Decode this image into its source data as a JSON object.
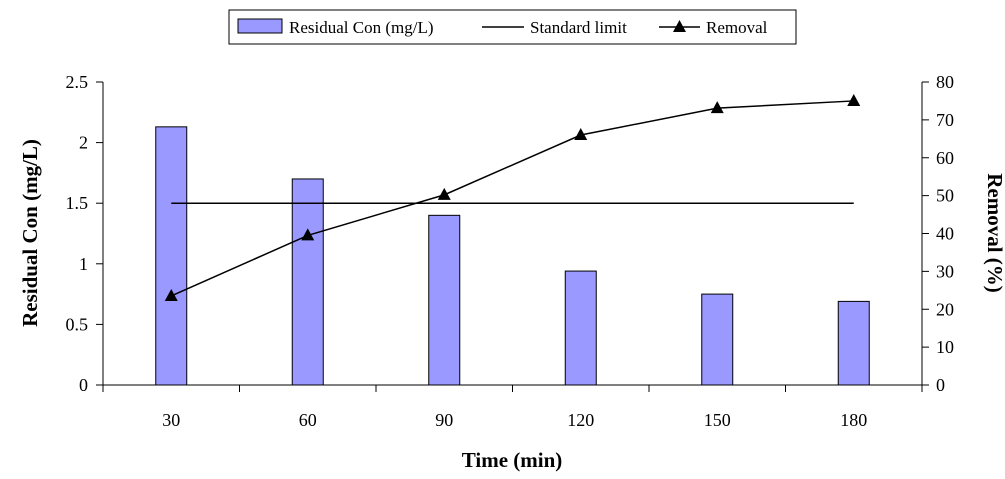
{
  "chart_data": {
    "type": "bar",
    "categories": [
      "30",
      "60",
      "90",
      "120",
      "150",
      "180"
    ],
    "series": [
      {
        "name": "Residual Con (mg/L)",
        "type": "bar",
        "axis": "left",
        "values": [
          2.13,
          1.7,
          1.4,
          0.94,
          0.75,
          0.69
        ],
        "color": "#9999FF"
      },
      {
        "name": "Standard limit",
        "type": "line",
        "axis": "left",
        "values": [
          1.5,
          1.5,
          1.5,
          1.5,
          1.5,
          1.5
        ],
        "color": "#000000"
      },
      {
        "name": "Removal",
        "type": "line",
        "axis": "right",
        "marker": "triangle",
        "values": [
          23.5,
          39.5,
          50.2,
          66.0,
          73.1,
          75.0
        ],
        "color": "#000000"
      }
    ],
    "xlabel": "Time (min)",
    "ylabel": "Residual Con (mg/L)",
    "y2label": "Removal (%)",
    "ylim": [
      0,
      2.5
    ],
    "yticks": [
      "0",
      "0.5",
      "1",
      "1.5",
      "2",
      "2.5"
    ],
    "y2lim": [
      0,
      80
    ],
    "y2ticks": [
      "0",
      "10",
      "20",
      "30",
      "40",
      "50",
      "60",
      "70",
      "80"
    ],
    "legend": "top",
    "grid": false
  }
}
